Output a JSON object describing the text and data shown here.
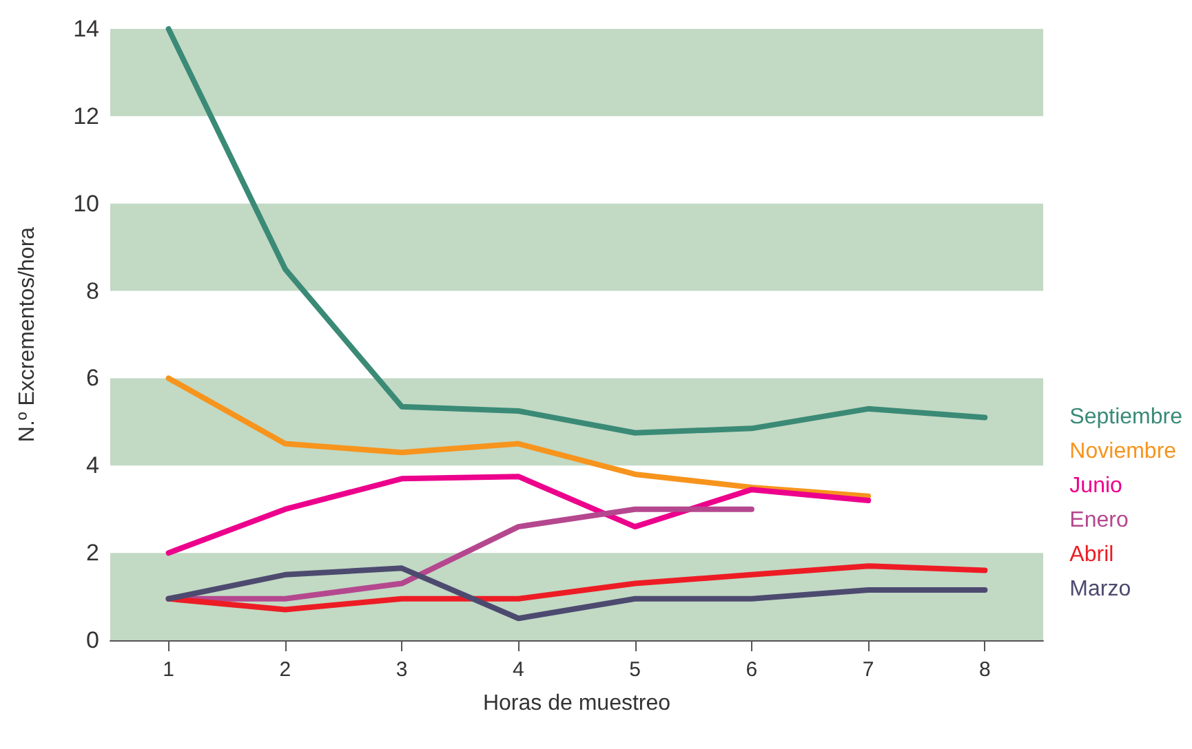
{
  "chart_data": {
    "type": "line",
    "xlabel": "Horas de muestreo",
    "ylabel": "N.º Excrementos/hora",
    "x": [
      1,
      2,
      3,
      4,
      5,
      6,
      7,
      8
    ],
    "series": [
      {
        "name": "Septiembre",
        "color": "#3a8a76",
        "values": [
          14,
          8.5,
          5.35,
          5.25,
          4.75,
          4.85,
          5.3,
          5.1
        ]
      },
      {
        "name": "Noviembre",
        "color": "#f7941d",
        "values": [
          6,
          4.5,
          4.3,
          4.5,
          3.8,
          3.5,
          3.3,
          null
        ]
      },
      {
        "name": "Junio",
        "color": "#ec008c",
        "values": [
          2,
          3,
          3.7,
          3.75,
          2.6,
          3.45,
          3.2,
          null
        ]
      },
      {
        "name": "Enero",
        "color": "#b5478f",
        "values": [
          0.95,
          0.95,
          1.3,
          2.6,
          3,
          3,
          null,
          null
        ]
      },
      {
        "name": "Abril",
        "color": "#ed1c24",
        "values": [
          0.95,
          0.7,
          0.95,
          0.95,
          1.3,
          1.5,
          1.7,
          1.6
        ]
      },
      {
        "name": "Marzo",
        "color": "#4d4a6f",
        "values": [
          0.95,
          1.5,
          1.65,
          0.5,
          0.95,
          0.95,
          1.15,
          1.15
        ]
      }
    ],
    "xlim": [
      0.5,
      8.5
    ],
    "xticks": [
      1,
      2,
      3,
      4,
      5,
      6,
      7,
      8
    ],
    "ylim": [
      0,
      14
    ],
    "yticks": [
      0,
      2,
      4,
      6,
      8,
      10,
      12,
      14
    ],
    "bands": [
      {
        "axis": "y",
        "from": 0,
        "to": 2,
        "color": "#c2d9c4"
      },
      {
        "axis": "y",
        "from": 4,
        "to": 6,
        "color": "#c2d9c4"
      },
      {
        "axis": "y",
        "from": 8,
        "to": 10,
        "color": "#c2d9c4"
      },
      {
        "axis": "y",
        "from": 12,
        "to": 14,
        "color": "#c2d9c4"
      }
    ],
    "legend": "right",
    "grid": false,
    "marker": "none",
    "line_style": "solid"
  }
}
